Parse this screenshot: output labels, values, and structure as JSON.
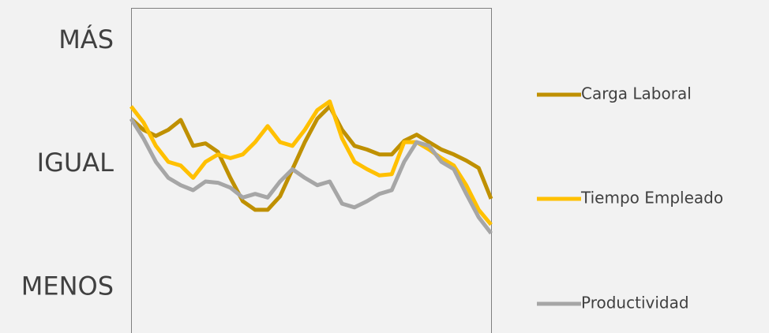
{
  "chart_data": {
    "type": "line",
    "categories": [
      null,
      null,
      null,
      null,
      null,
      null,
      null,
      null,
      null,
      null,
      null,
      null,
      null,
      null,
      null,
      null,
      null,
      null,
      null,
      null,
      null,
      null,
      null,
      null,
      null,
      null,
      null,
      null,
      null,
      null
    ],
    "series": [
      {
        "name": "Carga Laboral",
        "color": "#bf9000",
        "values": [
          0.37,
          0.28,
          0.23,
          0.28,
          0.36,
          0.15,
          0.17,
          0.1,
          -0.11,
          -0.3,
          -0.37,
          -0.37,
          -0.26,
          -0.04,
          0.18,
          0.37,
          0.47,
          0.28,
          0.15,
          0.12,
          0.08,
          0.08,
          0.19,
          0.24,
          0.18,
          0.12,
          0.08,
          0.03,
          -0.03,
          -0.28
        ]
      },
      {
        "name": "Tiempo Empleado",
        "color": "#ffc000",
        "values": [
          0.47,
          0.34,
          0.15,
          0.02,
          -0.01,
          -0.11,
          0.02,
          0.08,
          0.05,
          0.08,
          0.18,
          0.31,
          0.18,
          0.15,
          0.28,
          0.44,
          0.51,
          0.21,
          0.02,
          -0.04,
          -0.09,
          -0.08,
          0.18,
          0.18,
          0.12,
          0.05,
          -0.01,
          -0.17,
          -0.37,
          -0.49
        ]
      },
      {
        "name": "Productividad",
        "color": "#a6a6a6",
        "values": [
          0.37,
          0.21,
          0.02,
          -0.11,
          -0.17,
          -0.21,
          -0.14,
          -0.15,
          -0.19,
          -0.27,
          -0.24,
          -0.27,
          -0.14,
          -0.04,
          -0.11,
          -0.17,
          -0.14,
          -0.32,
          -0.35,
          -0.3,
          -0.24,
          -0.21,
          0.02,
          0.18,
          0.15,
          0.02,
          -0.04,
          -0.24,
          -0.43,
          -0.56
        ]
      }
    ],
    "ylim": [
      -1.37,
      1.27
    ],
    "yticks": [
      {
        "value": 1,
        "label": "MÁS"
      },
      {
        "value": 0,
        "label": "IGUAL"
      },
      {
        "value": -1,
        "label": "MENOS"
      }
    ],
    "legend": "right"
  }
}
